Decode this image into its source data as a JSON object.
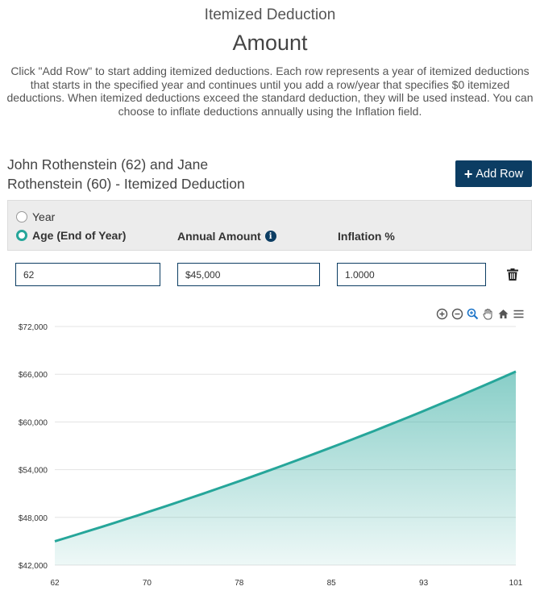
{
  "header": {
    "subtitle": "Itemized Deduction",
    "title": "Amount",
    "description": "Click \"Add Row\" to start adding itemized deductions. Each row represents a year of itemized deductions that starts in the specified year and continues until you add a row/year that specifies $0 itemized deductions. When itemized deductions exceed the standard deduction, they will be used instead. You can choose to inflate deductions annually using the Inflation field."
  },
  "section": {
    "title": "John Rothenstein (62) and Jane Rothenstein (60) - Itemized Deduction",
    "add_row_label": "Add Row"
  },
  "table": {
    "radio_year_label": "Year",
    "radio_age_label": "Age (End of Year)",
    "selected_mode": "age",
    "col_amount": "Annual Amount",
    "col_inflation": "Inflation %",
    "rows": [
      {
        "age": "62",
        "amount": "$45,000",
        "inflation": "1.0000"
      }
    ]
  },
  "toolbar": {
    "icons": [
      "zoom-in-icon",
      "zoom-out-icon",
      "magnify-icon",
      "pan-hand-icon",
      "home-icon",
      "menu-icon"
    ]
  },
  "colors": {
    "accent": "#26a69a",
    "button": "#0c3d63",
    "header_bg": "#ececec"
  },
  "chart_data": {
    "type": "area",
    "x": [
      62,
      101
    ],
    "x_tick_labels": [
      "62",
      "70",
      "78",
      "85",
      "93",
      "101"
    ],
    "series": [
      {
        "values": [
          45000,
          66220
        ]
      }
    ],
    "y_tick_labels": [
      "$42,000",
      "$48,000",
      "$54,000",
      "$60,000",
      "$66,000",
      "$72,000"
    ],
    "ylim": [
      42000,
      72000
    ],
    "xlim": [
      62,
      101
    ],
    "growth_rate": 0.01,
    "grid": true
  }
}
